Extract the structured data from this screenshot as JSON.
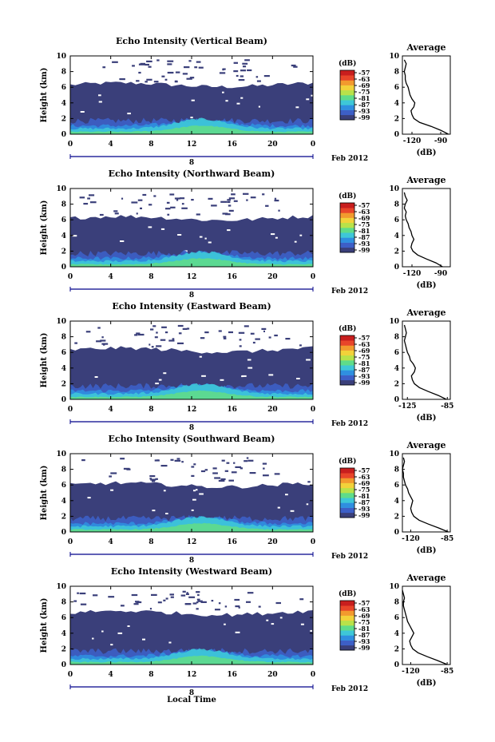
{
  "figure": {
    "date_label": "Feb 2012",
    "xlabel": "Local Time",
    "ylabel": "Height (km)",
    "cbar_unit": "(dB)",
    "avg_title": "Average",
    "avg_xlabel": "(dB)",
    "day_label": "8",
    "panels": [
      {
        "title": "Echo Intensity (Vertical Beam)"
      },
      {
        "title": "Echo Intensity (Northward Beam)"
      },
      {
        "title": "Echo Intensity (Eastward Beam)"
      },
      {
        "title": "Echo Intensity (Southward Beam)"
      },
      {
        "title": "Echo Intensity (Westward Beam)"
      }
    ]
  },
  "chart_data": [
    {
      "type": "heatmap",
      "title": "Echo Intensity (Vertical Beam)",
      "xlabel": "",
      "ylabel": "Height (km)",
      "x_ticks": [
        "0",
        "4",
        "8",
        "12",
        "16",
        "20",
        "0"
      ],
      "xlim": [
        0,
        24
      ],
      "y_ticks": [
        "0",
        "2",
        "4",
        "6",
        "8",
        "10"
      ],
      "ylim": [
        0,
        10
      ],
      "colorbar": {
        "unit": "(dB)",
        "ticks": [
          "-57",
          "-63",
          "-69",
          "-75",
          "-81",
          "-87",
          "-93",
          "-99"
        ]
      },
      "top_km": 6.3,
      "avg_profile": {
        "title": "Average",
        "xlabel": "(dB)",
        "x_ticks": [
          "-120",
          "-90"
        ],
        "xlim": [
          -130,
          -80
        ],
        "height": [
          0,
          0.5,
          1,
          1.5,
          2,
          2.5,
          3,
          3.5,
          4,
          4.5,
          5,
          5.5,
          6,
          6.5,
          7,
          7.5,
          8,
          8.5,
          9,
          9.5
        ],
        "db": [
          -82,
          -90,
          -100,
          -112,
          -118,
          -120,
          -121,
          -118,
          -117,
          -120,
          -122,
          -123,
          -124,
          -126,
          -127,
          -127,
          -128,
          -127,
          -126,
          -128
        ]
      }
    },
    {
      "type": "heatmap",
      "title": "Echo Intensity (Northward Beam)",
      "xlabel": "",
      "ylabel": "Height (km)",
      "x_ticks": [
        "0",
        "4",
        "8",
        "12",
        "16",
        "20",
        "0"
      ],
      "xlim": [
        0,
        24
      ],
      "y_ticks": [
        "0",
        "2",
        "4",
        "6",
        "8",
        "10"
      ],
      "ylim": [
        0,
        10
      ],
      "colorbar": {
        "unit": "(dB)",
        "ticks": [
          "-57",
          "-63",
          "-69",
          "-75",
          "-81",
          "-87",
          "-93",
          "-99"
        ]
      },
      "top_km": 6.2,
      "avg_profile": {
        "title": "Average",
        "xlabel": "(dB)",
        "x_ticks": [
          "-120",
          "-90"
        ],
        "xlim": [
          -130,
          -80
        ],
        "height": [
          0,
          0.5,
          1,
          1.5,
          2,
          2.5,
          3,
          3.5,
          4,
          4.5,
          5,
          5.5,
          6,
          6.5,
          7,
          7.5,
          8,
          8.5,
          9,
          9.5
        ],
        "db": [
          -88,
          -95,
          -105,
          -114,
          -119,
          -121,
          -120,
          -118,
          -120,
          -121,
          -123,
          -124,
          -126,
          -127,
          -126,
          -128,
          -127,
          -125,
          -127,
          -128
        ]
      }
    },
    {
      "type": "heatmap",
      "title": "Echo Intensity (Eastward Beam)",
      "xlabel": "",
      "ylabel": "Height (km)",
      "x_ticks": [
        "0",
        "4",
        "8",
        "12",
        "16",
        "20",
        "0"
      ],
      "xlim": [
        0,
        24
      ],
      "y_ticks": [
        "0",
        "2",
        "4",
        "6",
        "8",
        "10"
      ],
      "ylim": [
        0,
        10
      ],
      "colorbar": {
        "unit": "(dB)",
        "ticks": [
          "-57",
          "-63",
          "-69",
          "-75",
          "-81",
          "-87",
          "-93",
          "-99"
        ]
      },
      "top_km": 6.3,
      "avg_profile": {
        "title": "Average",
        "xlabel": "(dB)",
        "x_ticks": [
          "-125",
          "-85"
        ],
        "xlim": [
          -130,
          -82
        ],
        "height": [
          0,
          0.5,
          1,
          1.5,
          2,
          2.5,
          3,
          3.5,
          4,
          4.5,
          5,
          5.5,
          6,
          6.5,
          7,
          7.5,
          8,
          8.5,
          9,
          9.5
        ],
        "db": [
          -86,
          -94,
          -104,
          -113,
          -118,
          -120,
          -121,
          -118,
          -117,
          -119,
          -122,
          -123,
          -125,
          -126,
          -127,
          -128,
          -127,
          -126,
          -127,
          -128
        ]
      }
    },
    {
      "type": "heatmap",
      "title": "Echo Intensity (Southward Beam)",
      "xlabel": "",
      "ylabel": "Height (km)",
      "x_ticks": [
        "0",
        "4",
        "8",
        "12",
        "16",
        "20",
        "0"
      ],
      "xlim": [
        0,
        24
      ],
      "y_ticks": [
        "0",
        "2",
        "4",
        "6",
        "8",
        "10"
      ],
      "ylim": [
        0,
        10
      ],
      "colorbar": {
        "unit": "(dB)",
        "ticks": [
          "-57",
          "-63",
          "-69",
          "-75",
          "-81",
          "-87",
          "-93",
          "-99"
        ]
      },
      "top_km": 6.0,
      "avg_profile": {
        "title": "Average",
        "xlabel": "(dB)",
        "x_ticks": [
          "-120",
          "-85"
        ],
        "xlim": [
          -128,
          -82
        ],
        "height": [
          0,
          0.5,
          1,
          1.5,
          2,
          2.5,
          3,
          3.5,
          4,
          4.5,
          5,
          5.5,
          6,
          6.5,
          7,
          7.5,
          8,
          8.5,
          9,
          9.5
        ],
        "db": [
          -84,
          -93,
          -103,
          -112,
          -117,
          -119,
          -120,
          -119,
          -118,
          -120,
          -122,
          -123,
          -125,
          -126,
          -127,
          -127,
          -128,
          -127,
          -126,
          -127
        ]
      }
    },
    {
      "type": "heatmap",
      "title": "Echo Intensity (Westward Beam)",
      "xlabel": "Local Time",
      "ylabel": "Height (km)",
      "x_ticks": [
        "0",
        "4",
        "8",
        "12",
        "16",
        "20",
        "0"
      ],
      "xlim": [
        0,
        24
      ],
      "y_ticks": [
        "0",
        "2",
        "4",
        "6",
        "8",
        "10"
      ],
      "ylim": [
        0,
        10
      ],
      "colorbar": {
        "unit": "(dB)",
        "ticks": [
          "-57",
          "-63",
          "-69",
          "-75",
          "-81",
          "-87",
          "-93",
          "-99"
        ]
      },
      "top_km": 6.6,
      "avg_profile": {
        "title": "Average",
        "xlabel": "(dB)",
        "x_ticks": [
          "-120",
          "-85"
        ],
        "xlim": [
          -128,
          -82
        ],
        "height": [
          0,
          0.5,
          1,
          1.5,
          2,
          2.5,
          3,
          3.5,
          4,
          4.5,
          5,
          5.5,
          6,
          6.5,
          7,
          7.5,
          8,
          8.5,
          9,
          9.5
        ],
        "db": [
          -85,
          -94,
          -104,
          -113,
          -118,
          -120,
          -121,
          -119,
          -117,
          -119,
          -121,
          -123,
          -124,
          -125,
          -126,
          -127,
          -127,
          -126,
          -127,
          -128
        ]
      }
    }
  ],
  "colors": {
    "background_echo": "#3a3f7a",
    "colormap": [
      "#3a3f7a",
      "#3d5fc7",
      "#2f8fe0",
      "#3ec7d8",
      "#5fdc8a",
      "#b8e24a",
      "#f2d23a",
      "#f29a2e",
      "#e8452a",
      "#c81e1e"
    ]
  }
}
